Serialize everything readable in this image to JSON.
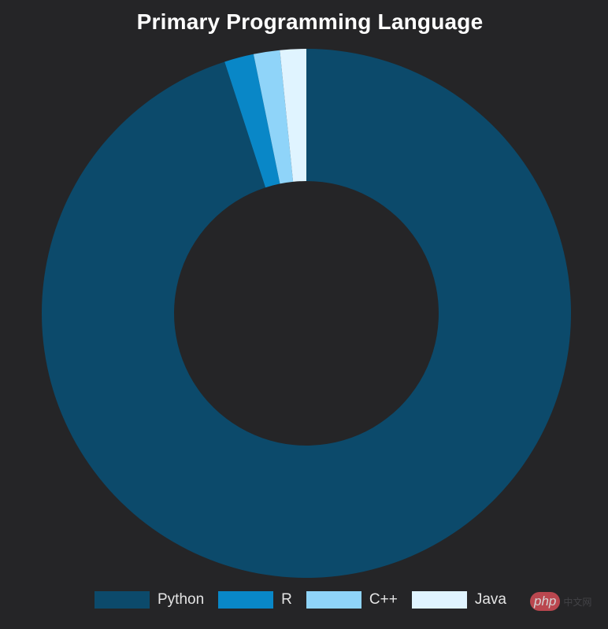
{
  "chart_data": {
    "type": "pie",
    "title": "Primary Programming Language",
    "categories": [
      "Python",
      "R",
      "C++",
      "Java"
    ],
    "values": [
      95,
      1.8,
      1.6,
      1.6
    ],
    "colors": [
      "#0c4a6b",
      "#0987c7",
      "#8fd4f9",
      "#e0f4ff"
    ],
    "donut": true,
    "legend_position": "bottom"
  },
  "watermark": {
    "logo": "php",
    "text": "中文网"
  }
}
